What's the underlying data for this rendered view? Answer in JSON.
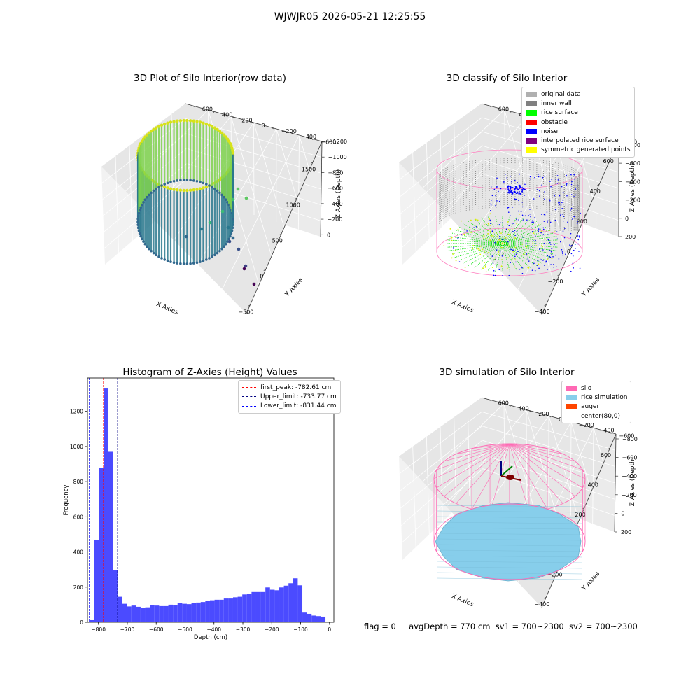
{
  "suptitle": "WJWJR05 2026-05-21 12:25:55",
  "chart_data": [
    {
      "type": "scatter",
      "projection": "3d",
      "title": "3D Plot of Silo Interior(row data)",
      "xlabel": "X Axies",
      "ylabel": "Y Axies",
      "zlabel": "Z Axies (Depth)",
      "x_ticks": [
        "−500",
        "0",
        "500",
        "1000",
        "1500"
      ],
      "y_ticks": [
        "−600",
        "−400",
        "−200",
        "0",
        "200",
        "400",
        "600"
      ],
      "z_ticks": [
        "0",
        "−200",
        "−400",
        "−600",
        "−800",
        "−1000",
        "−1200"
      ],
      "colormap": "viridis (by depth)",
      "grid": true
    },
    {
      "type": "scatter",
      "projection": "3d",
      "title": "3D classify of Silo Interior",
      "xlabel": "X Axies",
      "ylabel": "Y Axies",
      "zlabel": "Z Axies (Depth)",
      "x_ticks": [
        "−400",
        "−200",
        "0",
        "200",
        "400",
        "600"
      ],
      "y_ticks": [
        "−600",
        "−400",
        "−200",
        "0",
        "200",
        "400",
        "600"
      ],
      "z_ticks": [
        "200",
        "0",
        "−200",
        "−400",
        "−600",
        "−800"
      ],
      "legend_position": "top-right",
      "legend": [
        {
          "label": "original data",
          "color": "#b0b0b0"
        },
        {
          "label": "inner wall",
          "color": "#808080"
        },
        {
          "label": "rice surface",
          "color": "#00ff00"
        },
        {
          "label": "obstacle",
          "color": "#ff0000"
        },
        {
          "label": "noise",
          "color": "#0000ff"
        },
        {
          "label": "interpolated rice surface",
          "color": "#800080"
        },
        {
          "label": "symmetric generated points",
          "color": "#ffff00"
        }
      ],
      "grid": true
    },
    {
      "type": "bar",
      "title": "Histogram of Z-Axies (Height) Values",
      "xlabel": "Depth (cm)",
      "ylabel": "Frequency",
      "bar_color": "#4b4bff",
      "xlim": [
        -838,
        15
      ],
      "ylim": [
        0,
        1390
      ],
      "x_ticks": [
        -800,
        -700,
        -600,
        -500,
        -400,
        -300,
        -200,
        -100,
        0
      ],
      "x_tick_labels": [
        "−800",
        "−700",
        "−600",
        "−500",
        "−400",
        "−300",
        "−200",
        "−100",
        "0"
      ],
      "y_ticks": [
        0,
        200,
        400,
        600,
        800,
        1000,
        1200
      ],
      "bin_start": -830,
      "bin_width": 16,
      "values": [
        12,
        470,
        880,
        1330,
        970,
        295,
        145,
        105,
        90,
        95,
        88,
        80,
        85,
        97,
        95,
        92,
        92,
        100,
        98,
        108,
        105,
        103,
        108,
        112,
        115,
        120,
        125,
        128,
        128,
        135,
        135,
        142,
        145,
        158,
        160,
        172,
        172,
        172,
        198,
        185,
        182,
        198,
        208,
        222,
        250,
        210,
        55,
        48,
        38,
        35,
        32
      ],
      "vlines": [
        {
          "label": "first_peak: -782.61 cm",
          "x": -782.61,
          "color": "#ff0000"
        },
        {
          "label": "Upper_limit: -733.77 cm",
          "x": -733.77,
          "color": "#000080"
        },
        {
          "label": "Lower_limit: -831.44 cm",
          "x": -831.44,
          "color": "#0000ff"
        }
      ],
      "legend_position": "top-right",
      "grid": false
    },
    {
      "type": "surface",
      "projection": "3d",
      "title": "3D simulation of Silo Interior",
      "xlabel": "X Axies",
      "ylabel": "Y Axies",
      "zlabel": "Z Axies (Depth)",
      "x_ticks": [
        "−400",
        "−200",
        "0",
        "200",
        "400",
        "600"
      ],
      "y_ticks": [
        "−600",
        "−400",
        "−200",
        "0",
        "200",
        "400",
        "600"
      ],
      "z_ticks": [
        "200",
        "0",
        "−200",
        "−400",
        "−600",
        "−800"
      ],
      "legend_position": "top-right",
      "legend": [
        {
          "label": "silo",
          "color": "#ff69b4"
        },
        {
          "label": "rice simulation",
          "color": "#87ceeb"
        },
        {
          "label": "auger",
          "color": "#ff4500"
        },
        {
          "label": "center(80,0)",
          "color": ""
        }
      ],
      "grid": true
    }
  ],
  "status": {
    "flag": "flag = 0",
    "avg_depth": "avgDepth = 770 cm",
    "sv1": "sv1 = 700~2300",
    "sv2": "sv2 = 700~2300"
  }
}
